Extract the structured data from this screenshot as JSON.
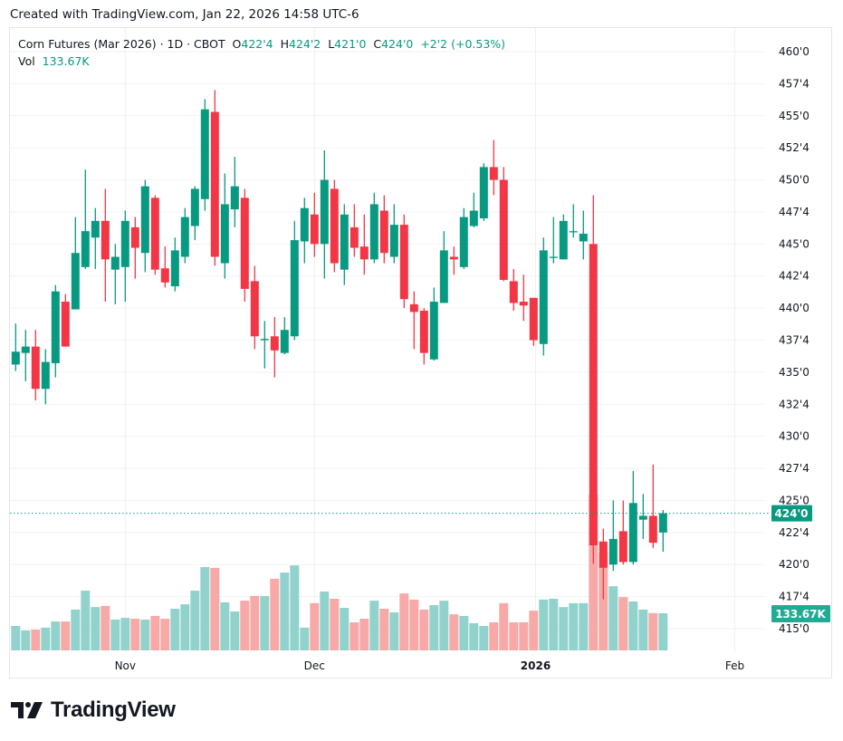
{
  "header": {
    "created": "Created with TradingView.com, Jan 22, 2026 14:58 UTC-6"
  },
  "legend": {
    "symbol": "Corn Futures (Mar 2026) · 1D · CBOT",
    "o_label": "O",
    "o_value": "422'4",
    "h_label": "H",
    "h_value": "424'2",
    "l_label": "L",
    "l_value": "421'0",
    "c_label": "C",
    "c_value": "424'0",
    "change": "+2'2 (+0.53%)",
    "vol_label": "Vol",
    "vol_value": "133.67K"
  },
  "logo": {
    "text": "TradingView"
  },
  "colors": {
    "up": "#089981",
    "down": "#f23645",
    "vol_up": "#92d2cc",
    "vol_down": "#f7a9a7",
    "grid": "#f0f3fa",
    "badge_vol": "#22ab94"
  },
  "chart_data": {
    "type": "candlestick",
    "price_range": [
      415,
      460
    ],
    "grid": true,
    "price_ticks": [
      {
        "value": 460,
        "label": "460'0"
      },
      {
        "value": 457.5,
        "label": "457'4"
      },
      {
        "value": 455,
        "label": "455'0"
      },
      {
        "value": 452.5,
        "label": "452'4"
      },
      {
        "value": 450,
        "label": "450'0"
      },
      {
        "value": 447.5,
        "label": "447'4"
      },
      {
        "value": 445,
        "label": "445'0"
      },
      {
        "value": 442.5,
        "label": "442'4"
      },
      {
        "value": 440,
        "label": "440'0"
      },
      {
        "value": 437.5,
        "label": "437'4"
      },
      {
        "value": 435,
        "label": "435'0"
      },
      {
        "value": 432.5,
        "label": "432'4"
      },
      {
        "value": 430,
        "label": "430'0"
      },
      {
        "value": 427.5,
        "label": "427'4"
      },
      {
        "value": 425,
        "label": "425'0"
      },
      {
        "value": 422.5,
        "label": "422'4"
      },
      {
        "value": 420,
        "label": "420'0"
      },
      {
        "value": 417.5,
        "label": "417'4"
      },
      {
        "value": 415,
        "label": "415'0"
      }
    ],
    "time_ticks": [
      {
        "bar": 11,
        "label": "Nov",
        "bold": false
      },
      {
        "bar": 30,
        "label": "Dec",
        "bold": false
      },
      {
        "bar": 52.2,
        "label": "2026",
        "bold": true
      },
      {
        "bar": 72.2,
        "label": "Feb",
        "bold": false
      }
    ],
    "last_price": {
      "value": 424.0,
      "label": "424'0"
    },
    "last_volume": {
      "value": 133.67,
      "label": "133.67K"
    },
    "volume_unit": "K",
    "ohlcv": [
      [
        435.6,
        438.8,
        435.1,
        436.6,
        88
      ],
      [
        436.5,
        438.3,
        434.3,
        437.0,
        72
      ],
      [
        437.0,
        438.3,
        432.8,
        433.7,
        75
      ],
      [
        433.7,
        436.8,
        432.5,
        435.8,
        82
      ],
      [
        435.7,
        441.8,
        434.6,
        441.3,
        104
      ],
      [
        440.5,
        441.1,
        437.0,
        437.0,
        104
      ],
      [
        439.9,
        447.1,
        439.9,
        444.3,
        147
      ],
      [
        443.2,
        450.8,
        443.05,
        446.0,
        215
      ],
      [
        445.5,
        447.8,
        443.05,
        446.8,
        156
      ],
      [
        446.8,
        449.3,
        440.5,
        443.8,
        160
      ],
      [
        443.0,
        445.0,
        440.3,
        444.0,
        111
      ],
      [
        443.2,
        447.6,
        440.5,
        446.8,
        117
      ],
      [
        446.3,
        447.1,
        442.3,
        444.7,
        114
      ],
      [
        444.3,
        450.0,
        442.8,
        449.5,
        111
      ],
      [
        448.6,
        448.8,
        442.6,
        443.0,
        124
      ],
      [
        443.1,
        444.8,
        441.6,
        442.0,
        114
      ],
      [
        441.7,
        445.5,
        441.3,
        444.5,
        150
      ],
      [
        444.0,
        447.8,
        443.5,
        447.1,
        166
      ],
      [
        446.4,
        449.5,
        445.3,
        449.3,
        215
      ],
      [
        448.5,
        456.3,
        447.6,
        455.5,
        300
      ],
      [
        455.3,
        457.0,
        443.3,
        444.0,
        297
      ],
      [
        443.5,
        450.5,
        442.3,
        448.1,
        173
      ],
      [
        447.7,
        451.8,
        446.3,
        449.5,
        140
      ],
      [
        448.6,
        449.3,
        440.5,
        441.5,
        179
      ],
      [
        442.1,
        443.3,
        436.8,
        437.8,
        196
      ],
      [
        437.5,
        439.0,
        435.3,
        437.6,
        196
      ],
      [
        437.8,
        439.3,
        434.6,
        436.7,
        258
      ],
      [
        436.5,
        439.3,
        436.4,
        438.3,
        280
      ],
      [
        437.8,
        446.8,
        437.5,
        445.3,
        306
      ],
      [
        445.2,
        448.6,
        443.5,
        447.8,
        82
      ],
      [
        447.3,
        449.0,
        444.0,
        445.0,
        170
      ],
      [
        445.0,
        452.3,
        442.3,
        450.0,
        212
      ],
      [
        449.3,
        450.0,
        442.8,
        443.5,
        186
      ],
      [
        443.0,
        448.1,
        441.8,
        447.3,
        153
      ],
      [
        446.3,
        448.1,
        444.0,
        444.7,
        101
      ],
      [
        444.8,
        447.3,
        442.6,
        443.8,
        114
      ],
      [
        443.8,
        449.0,
        443.5,
        448.1,
        179
      ],
      [
        447.6,
        448.8,
        443.5,
        444.3,
        150
      ],
      [
        444.0,
        448.1,
        443.5,
        446.5,
        137
      ],
      [
        446.5,
        447.3,
        440.0,
        440.7,
        205
      ],
      [
        440.3,
        441.3,
        436.8,
        439.7,
        183
      ],
      [
        439.8,
        440.0,
        435.6,
        436.5,
        147
      ],
      [
        436.0,
        441.6,
        435.9,
        440.5,
        163
      ],
      [
        440.4,
        446.0,
        440.4,
        444.5,
        179
      ],
      [
        444.0,
        444.8,
        442.6,
        443.8,
        130
      ],
      [
        443.2,
        447.8,
        443.05,
        447.1,
        124
      ],
      [
        446.4,
        449.0,
        446.3,
        447.6,
        98
      ],
      [
        447.0,
        451.3,
        446.8,
        451.0,
        88
      ],
      [
        451.0,
        453.1,
        448.8,
        450.0,
        101
      ],
      [
        450.0,
        451.0,
        442.1,
        442.2,
        170
      ],
      [
        442.1,
        443.05,
        439.8,
        440.4,
        101
      ],
      [
        440.5,
        442.6,
        439.0,
        440.2,
        101
      ],
      [
        440.8,
        440.8,
        437.05,
        437.5,
        143
      ],
      [
        437.2,
        445.5,
        436.3,
        444.5,
        183
      ],
      [
        443.95,
        447.1,
        443.5,
        444.0,
        186
      ],
      [
        443.8,
        447.3,
        443.8,
        446.8,
        156
      ],
      [
        445.95,
        448.1,
        445.5,
        446.0,
        170
      ],
      [
        445.2,
        447.6,
        443.8,
        445.8,
        170
      ],
      [
        445.0,
        448.8,
        420.05,
        421.5,
        561
      ],
      [
        421.8,
        422.8,
        417.3,
        419.75,
        352
      ],
      [
        420.0,
        425.0,
        419.5,
        422.0,
        231
      ],
      [
        422.6,
        425.0,
        420.0,
        420.2,
        192
      ],
      [
        420.2,
        427.3,
        420.0,
        424.8,
        176
      ],
      [
        423.5,
        425.5,
        422.0,
        423.8,
        147
      ],
      [
        423.8,
        427.8,
        421.3,
        421.7,
        134
      ],
      [
        422.5,
        424.25,
        421.0,
        424.0,
        133.67
      ]
    ]
  }
}
